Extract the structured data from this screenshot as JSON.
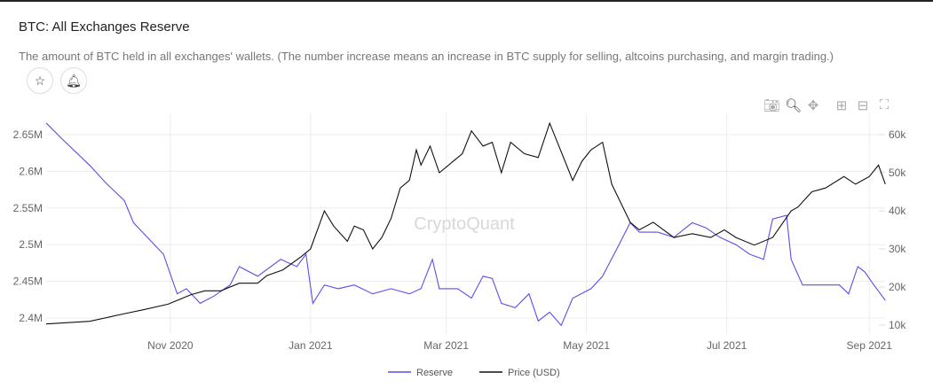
{
  "header": {
    "title": "BTC: All Exchanges Reserve",
    "description": "The amount of BTC held in all exchanges' wallets. (The number increase means an increase in BTC supply for selling, altcoins purchasing, and margin trading.)"
  },
  "toolbar": {
    "icons": [
      "camera-icon",
      "zoom-icon",
      "pan-icon",
      "zoom-in-icon",
      "zoom-out-icon",
      "autoscale-icon"
    ]
  },
  "colors": {
    "reserve": "#5b4ee8",
    "price": "#111111"
  },
  "watermark": "CryptoQuant",
  "chart_data": {
    "type": "line",
    "title": "BTC: All Exchanges Reserve",
    "x_unit": "days since 2020-09-08",
    "x_ticks": [
      {
        "day": 54,
        "label": "Nov 2020"
      },
      {
        "day": 115,
        "label": "Jan 2021"
      },
      {
        "day": 174,
        "label": "Mar 2021"
      },
      {
        "day": 235,
        "label": "May 2021"
      },
      {
        "day": 296,
        "label": "Jul 2021"
      },
      {
        "day": 358,
        "label": "Sep 2021"
      }
    ],
    "y_left": {
      "ticks": [
        2.4,
        2.45,
        2.5,
        2.55,
        2.6,
        2.65
      ],
      "labels": [
        "2.4M",
        "2.45M",
        "2.5M",
        "2.55M",
        "2.6M",
        "2.65M"
      ],
      "range": [
        2.385,
        2.68
      ]
    },
    "y_right": {
      "ticks": [
        10,
        20,
        30,
        40,
        50,
        60
      ],
      "labels": [
        "10k",
        "20k",
        "30k",
        "40k",
        "50k",
        "60k"
      ],
      "range": [
        9.5,
        65
      ]
    },
    "legend": [
      "Reserve",
      "Price (USD)"
    ],
    "legend_position": "bottom-center",
    "series": [
      {
        "name": "Reserve",
        "axis": "left",
        "unit": "M BTC",
        "points": [
          [
            0,
            2.666
          ],
          [
            7,
            2.644
          ],
          [
            19,
            2.608
          ],
          [
            26,
            2.584
          ],
          [
            34,
            2.56
          ],
          [
            38,
            2.53
          ],
          [
            44,
            2.51
          ],
          [
            51,
            2.487
          ],
          [
            57,
            2.433
          ],
          [
            61,
            2.44
          ],
          [
            67,
            2.42
          ],
          [
            73,
            2.43
          ],
          [
            80,
            2.445
          ],
          [
            84,
            2.47
          ],
          [
            92,
            2.457
          ],
          [
            102,
            2.48
          ],
          [
            109,
            2.47
          ],
          [
            113,
            2.487
          ],
          [
            116,
            2.42
          ],
          [
            121,
            2.445
          ],
          [
            127,
            2.44
          ],
          [
            134,
            2.445
          ],
          [
            142,
            2.433
          ],
          [
            150,
            2.44
          ],
          [
            158,
            2.433
          ],
          [
            163,
            2.44
          ],
          [
            168,
            2.48
          ],
          [
            171,
            2.44
          ],
          [
            179,
            2.44
          ],
          [
            185,
            2.427
          ],
          [
            190,
            2.457
          ],
          [
            194,
            2.454
          ],
          [
            198,
            2.42
          ],
          [
            204,
            2.414
          ],
          [
            210,
            2.433
          ],
          [
            214,
            2.396
          ],
          [
            219,
            2.408
          ],
          [
            224,
            2.39
          ],
          [
            229,
            2.427
          ],
          [
            237,
            2.44
          ],
          [
            242,
            2.457
          ],
          [
            248,
            2.493
          ],
          [
            254,
            2.53
          ],
          [
            258,
            2.517
          ],
          [
            266,
            2.517
          ],
          [
            273,
            2.51
          ],
          [
            281,
            2.53
          ],
          [
            287,
            2.523
          ],
          [
            293,
            2.51
          ],
          [
            300,
            2.5
          ],
          [
            306,
            2.487
          ],
          [
            312,
            2.48
          ],
          [
            316,
            2.535
          ],
          [
            322,
            2.54
          ],
          [
            324,
            2.48
          ],
          [
            329,
            2.445
          ],
          [
            337,
            2.445
          ],
          [
            345,
            2.445
          ],
          [
            349,
            2.433
          ],
          [
            353,
            2.47
          ],
          [
            356,
            2.463
          ],
          [
            360,
            2.445
          ],
          [
            365,
            2.424
          ]
        ]
      },
      {
        "name": "Price (USD)",
        "axis": "right",
        "unit": "k USD",
        "points": [
          [
            0,
            10.3
          ],
          [
            19,
            11
          ],
          [
            34,
            13
          ],
          [
            42,
            14
          ],
          [
            53,
            15.5
          ],
          [
            57,
            16.5
          ],
          [
            63,
            18
          ],
          [
            69,
            19
          ],
          [
            76,
            19
          ],
          [
            84,
            21
          ],
          [
            92,
            21
          ],
          [
            96,
            23
          ],
          [
            103,
            24.5
          ],
          [
            111,
            28
          ],
          [
            115,
            30
          ],
          [
            121,
            40
          ],
          [
            125,
            36
          ],
          [
            131,
            32
          ],
          [
            134,
            36
          ],
          [
            138,
            35
          ],
          [
            142,
            30
          ],
          [
            146,
            33
          ],
          [
            150,
            38
          ],
          [
            154,
            46
          ],
          [
            158,
            48
          ],
          [
            161,
            56
          ],
          [
            163,
            52
          ],
          [
            167,
            57
          ],
          [
            171,
            50
          ],
          [
            175,
            52
          ],
          [
            181,
            55
          ],
          [
            185,
            61
          ],
          [
            190,
            57
          ],
          [
            194,
            58
          ],
          [
            198,
            50
          ],
          [
            202,
            58
          ],
          [
            208,
            55
          ],
          [
            214,
            54
          ],
          [
            219,
            63
          ],
          [
            223,
            57
          ],
          [
            229,
            48
          ],
          [
            233,
            53
          ],
          [
            237,
            56
          ],
          [
            242,
            58
          ],
          [
            246,
            47
          ],
          [
            250,
            42
          ],
          [
            254,
            37
          ],
          [
            258,
            35
          ],
          [
            264,
            37
          ],
          [
            273,
            33
          ],
          [
            281,
            34
          ],
          [
            289,
            33
          ],
          [
            295,
            35
          ],
          [
            300,
            33
          ],
          [
            308,
            31
          ],
          [
            316,
            33
          ],
          [
            324,
            40
          ],
          [
            327,
            41
          ],
          [
            333,
            45
          ],
          [
            339,
            46
          ],
          [
            347,
            49
          ],
          [
            352,
            47
          ],
          [
            358,
            49
          ],
          [
            362,
            52
          ],
          [
            365,
            47
          ]
        ]
      }
    ]
  }
}
